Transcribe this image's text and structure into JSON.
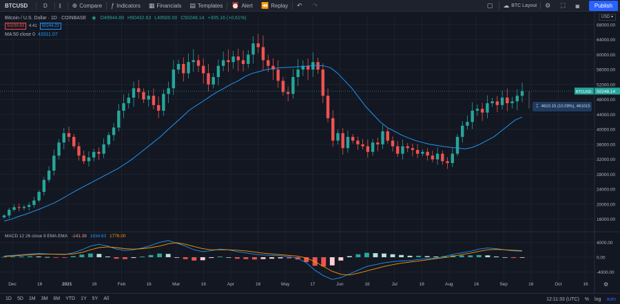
{
  "toolbar": {
    "symbol": "BTCUSD",
    "interval": "D",
    "compare_label": "Compare",
    "indicators_label": "Indicators",
    "financials_label": "Financials",
    "templates_label": "Templates",
    "alert_label": "Alert",
    "replay_label": "Replay",
    "layout_label": "BTC Layout",
    "publish_label": "Publish"
  },
  "legend": {
    "title": "Bitcoin / U.S. Dollar · 1D · COINBASE",
    "open": "O49944.89",
    "high": "H50432.63",
    "low": "L49500.00",
    "close": "C50248.14",
    "change": "+305.16 (+0.61%)",
    "bid": "50239.83",
    "spread": "4.41",
    "ask": "50244.23",
    "ma_label": "MA 50 close 0",
    "ma_value": "43311.07"
  },
  "currency": "USD",
  "macd": {
    "label": "MACD 12 26 close 9 EMA EMA",
    "v1": "-141.38",
    "v2": "1634.63",
    "v3": "1776.00"
  },
  "last_price": {
    "symbol": "BTCUSD",
    "value": "50248.14"
  },
  "tooltip": "4610.15 (10.09%), 461015",
  "bottom": {
    "ranges": [
      "1D",
      "5D",
      "1M",
      "3M",
      "6M",
      "YTD",
      "1Y",
      "5Y",
      "All"
    ],
    "time": "12:11:33 (UTC)",
    "percent": "%",
    "log": "log",
    "auto": "auto"
  },
  "colors": {
    "up": "#26a69a",
    "down": "#ef5350",
    "ma": "#2196f3",
    "macd": "#2196f3",
    "signal": "#ff9800",
    "accent": "#2962ff"
  },
  "chart_data": {
    "type": "candlestick",
    "price_axis": [
      16000,
      20000,
      24000,
      28000,
      32000,
      36000,
      40000,
      44000,
      48000,
      52000,
      56000,
      60000,
      64000,
      68000
    ],
    "price_axis_labels": [
      "16000.00",
      "20000.00",
      "24000.00",
      "28000.00",
      "32000.00",
      "36000.00",
      "40000.00",
      "44000.00",
      "48000.00",
      "52000.00",
      "56000.00",
      "60000.00",
      "64000.00",
      "68000.00"
    ],
    "macd_axis": [
      4000,
      0,
      -4000
    ],
    "macd_axis_labels": [
      "4000.00",
      "0.00",
      "-4000.00"
    ],
    "time_labels": [
      "Dec",
      "16",
      "2021",
      "16",
      "Feb",
      "16",
      "Mar",
      "16",
      "Apr",
      "16",
      "May",
      "17",
      "Jun",
      "16",
      "Jul",
      "16",
      "Aug",
      "16",
      "Sep",
      "16",
      "Oct",
      "16"
    ],
    "close_path": [
      17000,
      18500,
      19200,
      19000,
      19300,
      19800,
      21000,
      23300,
      26500,
      29000,
      33000,
      36500,
      39000,
      38000,
      35500,
      33000,
      31500,
      32500,
      34000,
      33500,
      36000,
      38500,
      40500,
      45000,
      47000,
      48500,
      51000,
      50000,
      48000,
      49000,
      46500,
      45000,
      49500,
      51000,
      56000,
      57500,
      55000,
      58000,
      58500,
      57000,
      55000,
      52000,
      54000,
      57000,
      58500,
      58000,
      59500,
      58500,
      57500,
      60000,
      63000,
      62000,
      58500,
      57000,
      56000,
      53000,
      50000,
      49500,
      54000,
      56000,
      57000,
      56000,
      58000,
      56000,
      49000,
      43000,
      37000,
      39000,
      35000,
      38000,
      37000,
      36000,
      35500,
      34000,
      36500,
      36000,
      39500,
      37000,
      35500,
      33500,
      35500,
      35000,
      34500,
      33500,
      34000,
      33000,
      32000,
      33500,
      31500,
      31000,
      33500,
      38000,
      41000,
      42000,
      45000,
      45500,
      44500,
      47000,
      47500,
      46500,
      48500,
      47000,
      47500,
      49000,
      50248
    ],
    "ma50_path": [
      15500,
      16000,
      16700,
      17300,
      18000,
      18700,
      19500,
      20300,
      21300,
      22400,
      23500,
      24500,
      25500,
      26500,
      27500,
      28500,
      29500,
      30700,
      32000,
      33500,
      35000,
      36500,
      38000,
      39800,
      41500,
      43200,
      45000,
      46300,
      47500,
      48800,
      50000,
      51000,
      52100,
      53000,
      54200,
      55000,
      55500,
      56000,
      56300,
      56500,
      56600,
      56700,
      56800,
      57000,
      57100,
      57000,
      56500,
      55000,
      53000,
      51000,
      48500,
      46000,
      44000,
      42000,
      40500,
      39500,
      38500,
      37700,
      37000,
      36500,
      36000,
      35700,
      35400,
      35200,
      35000,
      34800,
      35200,
      36000,
      37000,
      38000,
      39500,
      41000,
      42500,
      43311
    ],
    "macd_line": [
      300,
      500,
      700,
      900,
      1000,
      900,
      800,
      700,
      1200,
      2000,
      3000,
      3500,
      3000,
      2200,
      1800,
      2000,
      2500,
      3200,
      4000,
      4500,
      3800,
      3000,
      2000,
      1500,
      1800,
      2200,
      2000,
      1500,
      1200,
      800,
      600,
      500,
      400,
      200,
      -300,
      -1500,
      -3500,
      -5000,
      -6000,
      -5500,
      -4500,
      -3500,
      -2500,
      -2000,
      -1500,
      -1200,
      -1000,
      -900,
      -600,
      -400,
      -200,
      200,
      800,
      1200,
      1600,
      2200,
      2500,
      2300,
      2000,
      1700,
      1634
    ],
    "signal_line": [
      200,
      350,
      500,
      650,
      800,
      850,
      850,
      800,
      900,
      1300,
      2000,
      2600,
      2800,
      2600,
      2300,
      2200,
      2300,
      2600,
      3000,
      3600,
      3900,
      3500,
      2900,
      2300,
      2000,
      2000,
      2000,
      1900,
      1700,
      1400,
      1100,
      900,
      700,
      500,
      300,
      -200,
      -1200,
      -2500,
      -3800,
      -4600,
      -4800,
      -4300,
      -3700,
      -3100,
      -2500,
      -2000,
      -1600,
      -1300,
      -1000,
      -700,
      -400,
      -100,
      300,
      700,
      1100,
      1600,
      2000,
      2100,
      2000,
      1900,
      1776
    ]
  }
}
